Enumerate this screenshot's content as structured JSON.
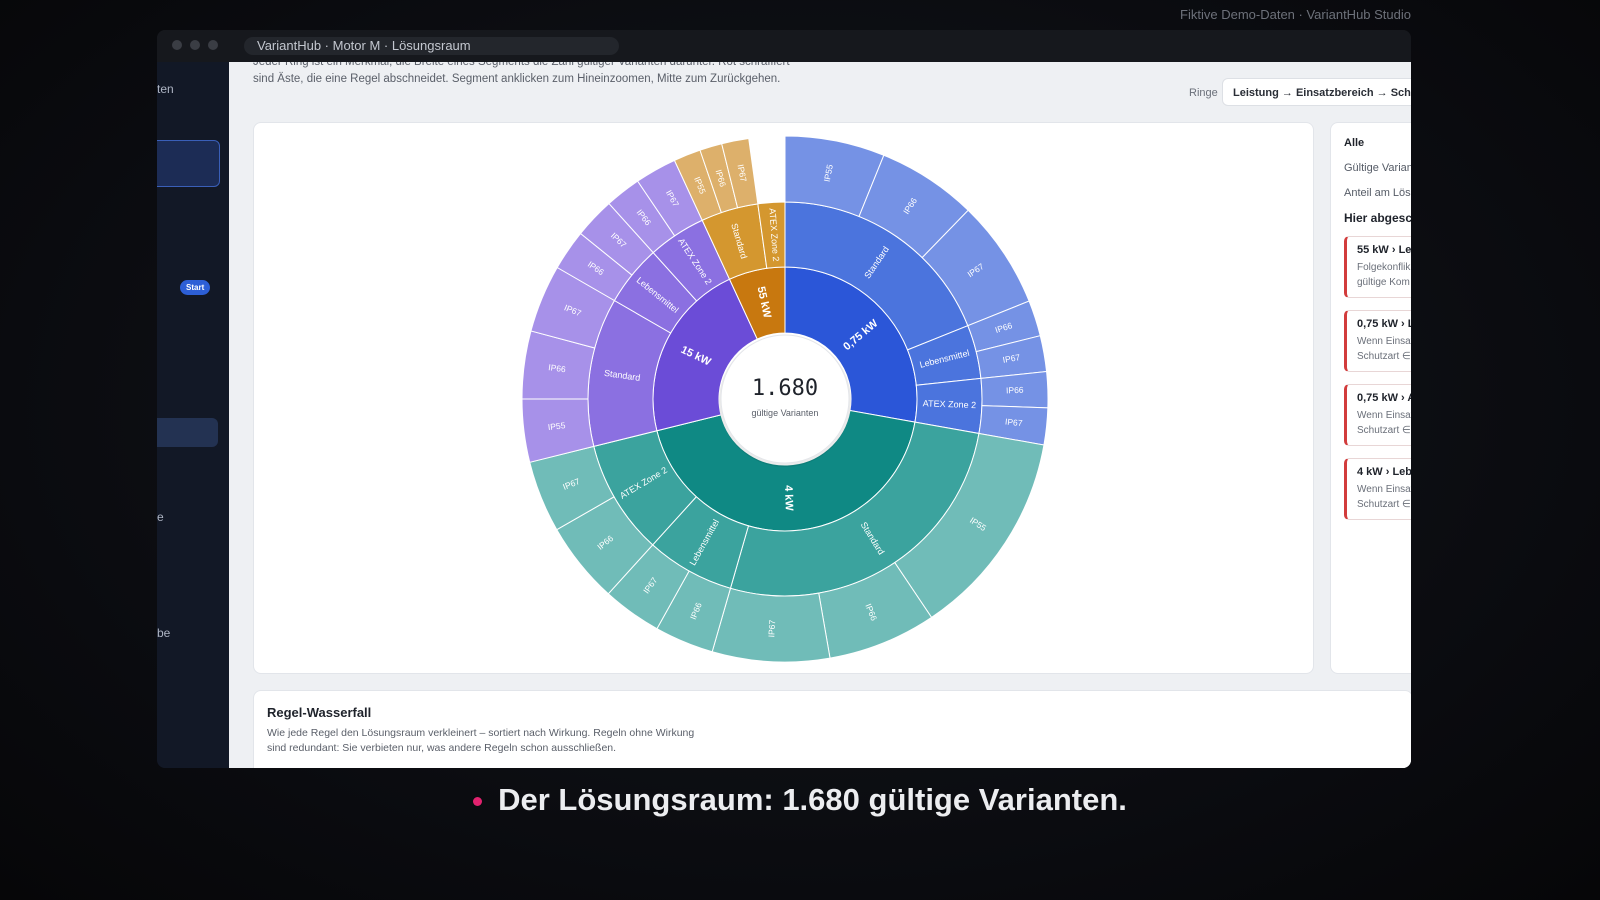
{
  "topbar": "Fiktive Demo-Daten · VariantHub Studio",
  "window": {
    "title": "VariantHub · Motor M · Lösungsraum"
  },
  "sidebar": {
    "items": [
      "ten",
      "e",
      "be"
    ],
    "badge": "Start"
  },
  "header": {
    "description": "Jeder Ring ist ein Merkmal, die Breite eines Segments die Zahl gültiger Varianten darunter. Rot schraffiert sind Äste, die eine Regel abschneidet. Segment anklicken zum Hineinzoomen, Mitte zum Zurückgehen.",
    "rings_label": "Ringe",
    "rings_value": "Leistung → Einsatzbereich → Schutz"
  },
  "panel": {
    "filter": "Alle",
    "valid": "Gültige Varian",
    "share": "Anteil am Lös",
    "cut_heading": "Hier abgesch",
    "cards": [
      {
        "title": "55 kW › Le",
        "lines": [
          "Folgekonflik",
          "gültige Kom"
        ]
      },
      {
        "title": "0,75 kW › L",
        "lines": [
          "Wenn Einsat",
          "Schutzart ∈"
        ]
      },
      {
        "title": "0,75 kW › A",
        "lines": [
          "Wenn Einsat",
          "Schutzart ∈"
        ]
      },
      {
        "title": "4 kW › Lebe",
        "lines": [
          "Wenn Einsat",
          "Schutzart ∈"
        ]
      }
    ]
  },
  "chart_data": {
    "type": "sunburst",
    "total": {
      "value": 1680,
      "label": "1.680"
    },
    "total_caption": "gültige Varianten",
    "nodes": [
      {
        "name": "0,75 kW",
        "value": 467,
        "colors": [
          "#2b56d8",
          "#4b74dd",
          "#7592e5"
        ],
        "children": [
          {
            "name": "Standard",
            "value": 318,
            "children": [
              {
                "name": "IP55",
                "value": 103
              },
              {
                "name": "IP66",
                "value": 103
              },
              {
                "name": "IP67",
                "value": 112
              }
            ]
          },
          {
            "name": "Lebensmittel",
            "value": 74,
            "children": [
              {
                "name": "IP66",
                "value": 37
              },
              {
                "name": "IP67",
                "value": 37
              }
            ]
          },
          {
            "name": "ATEX Zone 2",
            "value": 75,
            "children": [
              {
                "name": "IP66",
                "value": 37
              },
              {
                "name": "IP67",
                "value": 38
              }
            ]
          }
        ]
      },
      {
        "name": "4 kW",
        "value": 728,
        "colors": [
          "#0f8984",
          "#3ba39e",
          "#70bcb8"
        ],
        "children": [
          {
            "name": "Standard",
            "value": 448,
            "children": [
              {
                "name": "IP55",
                "value": 215
              },
              {
                "name": "IP66",
                "value": 112
              },
              {
                "name": "IP67",
                "value": 121
              }
            ]
          },
          {
            "name": "Lebensmittel",
            "value": 122,
            "children": [
              {
                "name": "IP66",
                "value": 61
              },
              {
                "name": "IP67",
                "value": 61
              }
            ]
          },
          {
            "name": "ATEX Zone 2",
            "value": 158,
            "children": [
              {
                "name": "IP66",
                "value": 84
              },
              {
                "name": "IP67",
                "value": 74
              }
            ]
          }
        ]
      },
      {
        "name": "15 kW",
        "value": 369,
        "colors": [
          "#6b4cd7",
          "#8b70e1",
          "#a791e9"
        ],
        "children": [
          {
            "name": "Standard",
            "value": 205,
            "children": [
              {
                "name": "IP55",
                "value": 65
              },
              {
                "name": "IP66",
                "value": 70
              },
              {
                "name": "IP67",
                "value": 70
              }
            ]
          },
          {
            "name": "Lebensmittel",
            "value": 84,
            "children": [
              {
                "name": "IP66",
                "value": 42
              },
              {
                "name": "IP67",
                "value": 42
              }
            ]
          },
          {
            "name": "ATEX Zone 2",
            "value": 80,
            "children": [
              {
                "name": "IP66",
                "value": 37
              },
              {
                "name": "IP67",
                "value": 43
              }
            ]
          }
        ]
      },
      {
        "name": "55 kW",
        "value": 116,
        "colors": [
          "#c8780f",
          "#d4972f",
          "#ddb06b"
        ],
        "children": [
          {
            "name": "Standard",
            "value": 79,
            "children": [
              {
                "name": "IP55",
                "value": 28
              },
              {
                "name": "IP66",
                "value": 23
              },
              {
                "name": "IP67",
                "value": 28
              }
            ]
          },
          {
            "name": "ATEX Zone 2",
            "value": 37
          }
        ]
      }
    ]
  },
  "waterfall": {
    "title": "Regel-Wasserfall",
    "description": "Wie jede Regel den Lösungsraum verkleinert – sortiert nach Wirkung. Regeln ohne Wirkung sind redundant: Sie verbieten nur, was andere Regeln schon ausschließen."
  },
  "caption": "Der Lösungsraum: 1.680 gültige Varianten."
}
